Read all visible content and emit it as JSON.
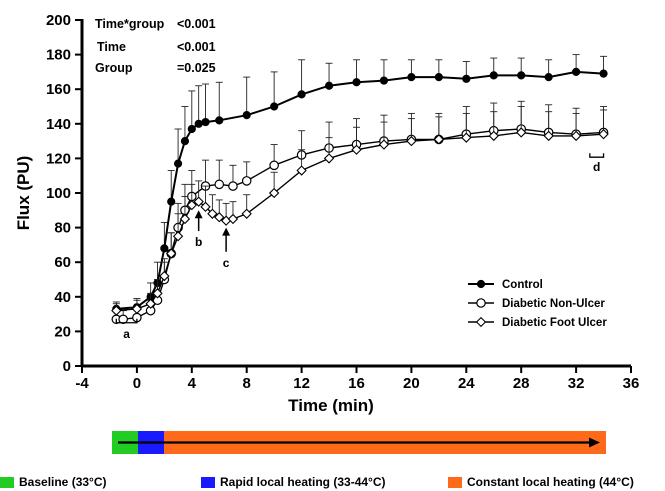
{
  "chart_data": {
    "type": "line",
    "xlabel": "Time (min)",
    "ylabel": "Flux (PU)",
    "xlim": [
      -4,
      36
    ],
    "ylim": [
      0,
      200
    ],
    "x_ticks": [
      "-4",
      "0",
      "4",
      "8",
      "12",
      "16",
      "20",
      "24",
      "28",
      "32",
      "36"
    ],
    "y_ticks": [
      "0",
      "20",
      "40",
      "60",
      "80",
      "100",
      "120",
      "140",
      "160",
      "180",
      "200"
    ],
    "grid": false,
    "legend_position": "bottom-right",
    "statistics": [
      {
        "label": "Time*group",
        "value": "<0.001"
      },
      {
        "label": "Time",
        "value": "<0.001"
      },
      {
        "label": "Group",
        "value": "=0.025"
      }
    ],
    "series": [
      {
        "name": "Control",
        "marker": "filled-circle",
        "x": [
          -1.5,
          0,
          1,
          1.5,
          2,
          2.5,
          3,
          3.5,
          4,
          4.5,
          5,
          6,
          8,
          10,
          12,
          14,
          16,
          18,
          20,
          22,
          24,
          26,
          28,
          30,
          32,
          34
        ],
        "y": [
          33,
          34,
          40,
          48,
          68,
          95,
          117,
          130,
          137,
          140,
          141,
          142,
          145,
          150,
          157,
          162,
          164,
          165,
          167,
          167,
          166,
          168,
          168,
          167,
          170,
          169
        ],
        "error": [
          4,
          5,
          8,
          12,
          15,
          18,
          20,
          20,
          22,
          22,
          22,
          22,
          22,
          20,
          20,
          13,
          13,
          12,
          10,
          10,
          10,
          10,
          10,
          10,
          10,
          10
        ]
      },
      {
        "name": "Diabetic Non-Ulcer",
        "marker": "open-circle",
        "x": [
          -1.5,
          -1,
          0,
          1,
          1.5,
          2,
          2.5,
          3,
          3.5,
          4,
          5,
          6,
          7,
          8,
          10,
          12,
          14,
          16,
          18,
          20,
          22,
          24,
          26,
          28,
          30,
          32,
          34
        ],
        "y": [
          27,
          27,
          28,
          32,
          38,
          50,
          65,
          80,
          90,
          98,
          104,
          105,
          104,
          107,
          116,
          122,
          126,
          128,
          130,
          131,
          131,
          134,
          136,
          137,
          135,
          134,
          135
        ],
        "error": [
          5,
          5,
          5,
          6,
          8,
          10,
          12,
          14,
          15,
          15,
          15,
          14,
          12,
          11,
          12,
          14,
          15,
          15,
          15,
          15,
          15,
          16,
          16,
          16,
          16,
          15,
          15
        ]
      },
      {
        "name": "Diabetic Foot Ulcer",
        "marker": "open-diamond",
        "x": [
          -1.5,
          0,
          1,
          1.5,
          2,
          2.5,
          3,
          3.5,
          4,
          4.5,
          5,
          5.5,
          6,
          6.5,
          7,
          8,
          10,
          12,
          14,
          16,
          18,
          20,
          22,
          24,
          26,
          28,
          30,
          32,
          34
        ],
        "y": [
          32,
          33,
          36,
          42,
          52,
          65,
          75,
          85,
          93,
          95,
          92,
          88,
          86,
          84,
          85,
          88,
          100,
          113,
          120,
          125,
          128,
          130,
          131,
          132,
          133,
          135,
          133,
          133,
          134
        ],
        "error": [
          4,
          5,
          6,
          8,
          10,
          12,
          13,
          13,
          12,
          12,
          12,
          11,
          10,
          10,
          10,
          11,
          12,
          12,
          12,
          13,
          13,
          13,
          13,
          14,
          14,
          15,
          14,
          13,
          14
        ]
      }
    ],
    "annotations": [
      {
        "label": "a",
        "x": [
          -1.5,
          0
        ],
        "y": 25
      },
      {
        "label": "b",
        "x": 4.5,
        "y_from": 90,
        "y_to": 78
      },
      {
        "label": "c",
        "x": 6.5,
        "y_from": 80,
        "y_to": 66
      },
      {
        "label": "d",
        "x": [
          33,
          34
        ],
        "y": 123
      }
    ]
  },
  "protocol_bar": {
    "x_start": -2,
    "x_end": 36,
    "segments": [
      {
        "label": "Baseline (33°C)",
        "color": "#22cc22",
        "from": -2,
        "to": 0
      },
      {
        "label": "Rapid local heating (33-44°C)",
        "color": "#1a1aff",
        "from": 0,
        "to": 2
      },
      {
        "label": "Constant local heating (44°C)",
        "color": "#ff6a1a",
        "from": 2,
        "to": 36
      }
    ]
  }
}
